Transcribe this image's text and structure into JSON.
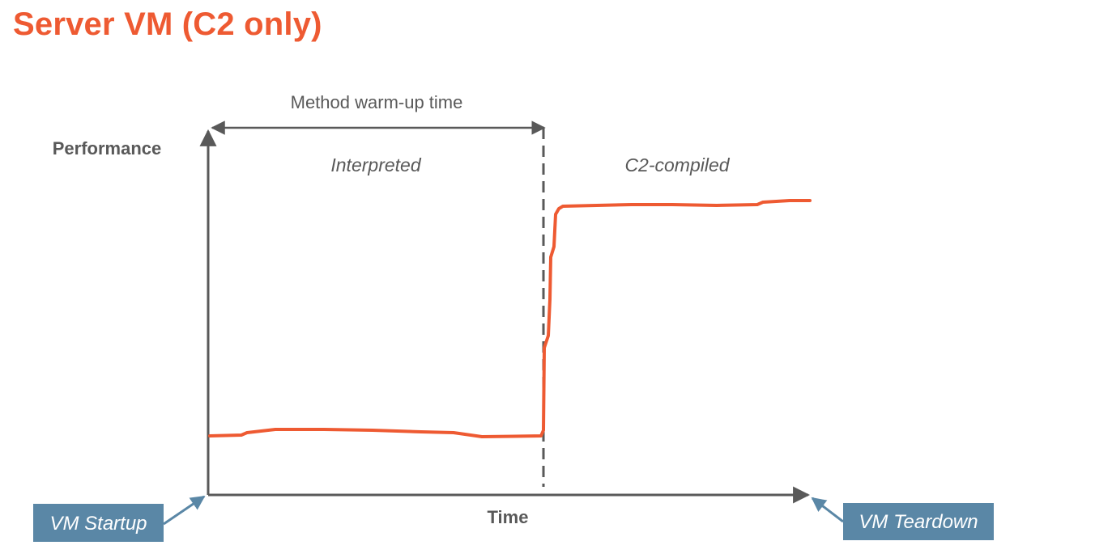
{
  "slide": {
    "title": "Server VM (C2 only)"
  },
  "diagram": {
    "y_axis_label": "Performance",
    "x_axis_label": "Time",
    "span_label": "Method warm-up time",
    "phase_before": "Interpreted",
    "phase_after": "C2-compiled",
    "callout_start": "VM Startup",
    "callout_end": "VM Teardown"
  },
  "colors": {
    "title": "#ee5a32",
    "curve": "#ee5a32",
    "axis": "#595959",
    "callout_fill": "#5a87a6"
  }
}
